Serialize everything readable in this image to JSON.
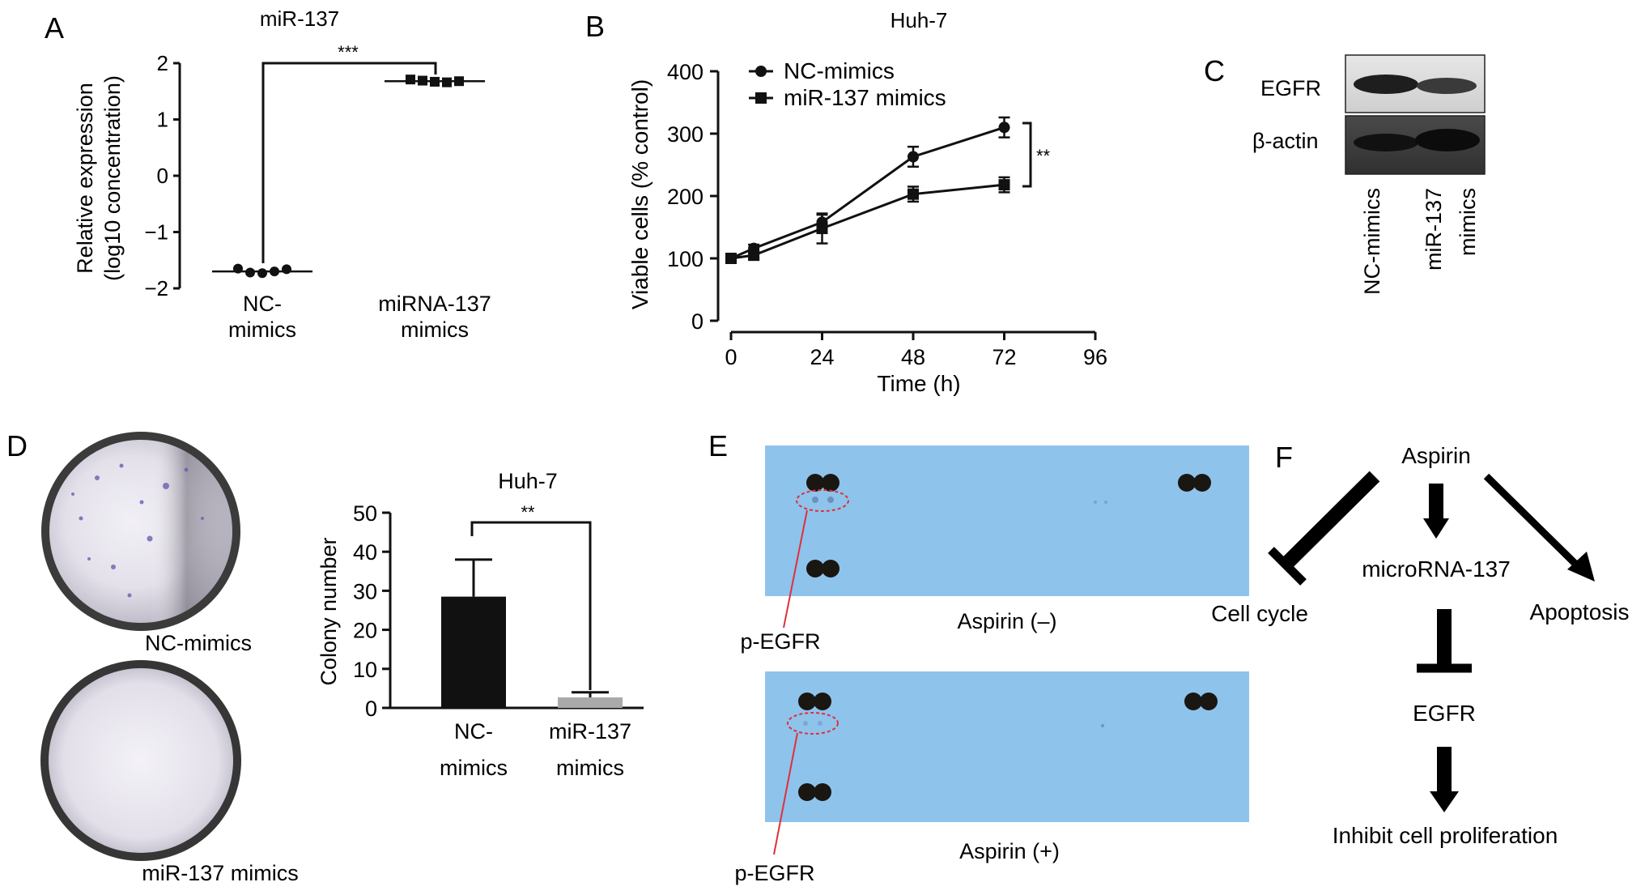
{
  "panels": {
    "A": {
      "letter": "A",
      "title": "miR-137",
      "ylabel1": "Relative expression",
      "ylabel2": "(log10 concentration)",
      "yticks": [
        "2",
        "1",
        "0",
        "−1",
        "−2"
      ],
      "cat1_line1": "NC-",
      "cat1_line2": "mimics",
      "cat2_line1": "miRNA-137",
      "cat2_line2": "mimics",
      "sig": "***"
    },
    "B": {
      "letter": "B",
      "title": "Huh-7",
      "ylabel": "Viable cells (% control)",
      "xlabel": "Time (h)",
      "yticks": [
        "400",
        "300",
        "200",
        "100",
        "0"
      ],
      "xticks": [
        "0",
        "24",
        "48",
        "72",
        "96"
      ],
      "legend1": "NC-mimics",
      "legend2": "miR-137 mimics",
      "sig": "**"
    },
    "C": {
      "letter": "C",
      "band1": "EGFR",
      "band2": "β-actin",
      "lane1": "NC-mimics",
      "lane2_line1": "miR-137",
      "lane2_line2": "mimics"
    },
    "D": {
      "letter": "D",
      "dish1": "NC-mimics",
      "dish2": "miR-137 mimics",
      "title": "Huh-7",
      "ylabel": "Colony number",
      "yticks": [
        "50",
        "40",
        "30",
        "20",
        "10",
        "0"
      ],
      "cat1_line1": "NC-",
      "cat1_line2": "mimics",
      "cat2_line1": "miR-137",
      "cat2_line2": "mimics",
      "sig": "**"
    },
    "E": {
      "letter": "E",
      "caption1": "Aspirin (–)",
      "caption2": "Aspirin (+)",
      "marker1": "p-EGFR",
      "marker2": "p-EGFR"
    },
    "F": {
      "letter": "F",
      "aspirin": "Aspirin",
      "cell_cycle": "Cell cycle",
      "mirna": "microRNA-137",
      "apoptosis": "Apoptosis",
      "egfr": "EGFR",
      "outcome": "Inhibit cell proliferation"
    }
  },
  "chart_data": [
    {
      "panel": "A",
      "type": "scatter",
      "title": "miR-137",
      "ylabel": "Relative expression (log10 concentration)",
      "categories": [
        "NC-mimics",
        "miRNA-137 mimics"
      ],
      "ylim": [
        -2,
        2
      ],
      "series": [
        {
          "name": "NC-mimics",
          "values": [
            -1.65,
            -1.72,
            -1.73,
            -1.7,
            -1.66
          ],
          "mean": -1.7
        },
        {
          "name": "miRNA-137 mimics",
          "values": [
            1.71,
            1.69,
            1.67,
            1.66,
            1.68
          ],
          "mean": 1.68
        }
      ],
      "annotation": "***"
    },
    {
      "panel": "B",
      "type": "line",
      "title": "Huh-7",
      "xlabel": "Time (h)",
      "ylabel": "Viable cells (% control)",
      "xlim": [
        0,
        96
      ],
      "ylim": [
        0,
        400
      ],
      "x": [
        0,
        6,
        24,
        48,
        72
      ],
      "series": [
        {
          "name": "NC-mimics",
          "values": [
            100,
            116,
            158,
            263,
            310
          ],
          "errors": [
            5,
            6,
            12,
            16,
            16
          ]
        },
        {
          "name": "miR-137 mimics",
          "values": [
            100,
            105,
            148,
            203,
            218
          ],
          "errors": [
            5,
            6,
            24,
            12,
            12
          ]
        }
      ],
      "legend": "top-left",
      "annotation": "**"
    },
    {
      "panel": "D",
      "type": "bar",
      "title": "Huh-7",
      "ylabel": "Colony number",
      "categories": [
        "NC-mimics",
        "miR-137 mimics"
      ],
      "values": [
        28.5,
        2.7
      ],
      "errors": [
        9.5,
        1.3
      ],
      "ylim": [
        0,
        50
      ],
      "colors": [
        "#111111",
        "#aaaaaa"
      ],
      "annotation": "**"
    }
  ]
}
